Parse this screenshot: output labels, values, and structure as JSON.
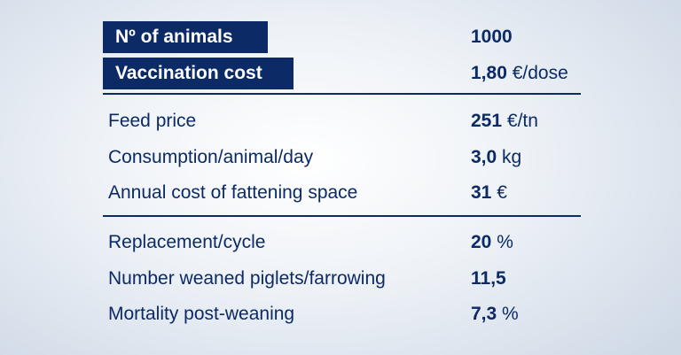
{
  "highlight": {
    "animals": {
      "label": "Nº of animals",
      "value": "1000",
      "unit": ""
    },
    "vaccination": {
      "label": "Vaccination cost",
      "value": "1,80",
      "unit": "€/dose"
    }
  },
  "group1": [
    {
      "label": "Feed price",
      "value": "251",
      "unit": "€/tn"
    },
    {
      "label": "Consumption/animal/day",
      "value": "3,0",
      "unit": "kg"
    },
    {
      "label": "Annual cost of fattening space",
      "value": "31",
      "unit": "€"
    }
  ],
  "group2": [
    {
      "label": "Replacement/cycle",
      "value": "20",
      "unit": "%"
    },
    {
      "label": "Number weaned piglets/farrowing",
      "value": "11,5",
      "unit": ""
    },
    {
      "label": "Mortality post-weaning",
      "value": "7,3",
      "unit": "%"
    }
  ],
  "colors": {
    "primary": "#0b2a66",
    "background": "#e9eff6"
  }
}
